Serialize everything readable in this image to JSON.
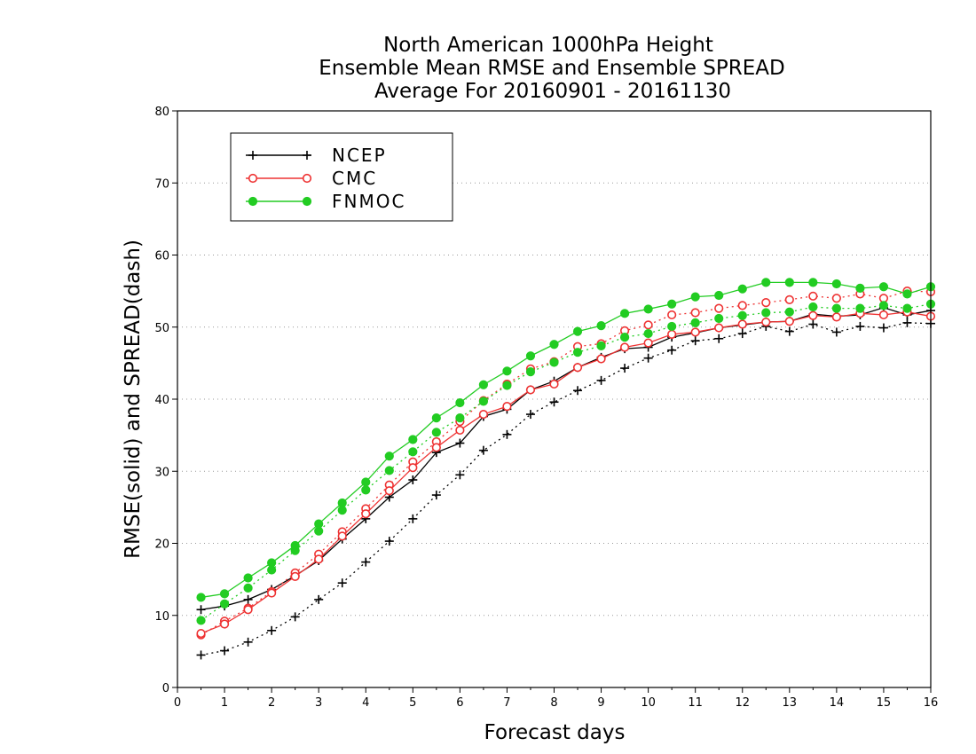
{
  "chart_data": {
    "type": "line",
    "title": [
      "North American 1000hPa Height",
      "Ensemble Mean RMSE and Ensemble SPREAD",
      "Average For 20160901 - 20161130"
    ],
    "xlabel": "Forecast days",
    "ylabel": "RMSE(solid) and SPREAD(dash)",
    "xlim": [
      0,
      16
    ],
    "ylim": [
      0,
      80
    ],
    "xticks": [
      0,
      1,
      2,
      3,
      4,
      5,
      6,
      7,
      8,
      9,
      10,
      11,
      12,
      13,
      14,
      15,
      16
    ],
    "yticks": [
      0,
      10,
      20,
      30,
      40,
      50,
      60,
      70,
      80
    ],
    "grid": "horizontal dotted",
    "legend_position": "top-left",
    "x": [
      0.5,
      1,
      1.5,
      2,
      2.5,
      3,
      3.5,
      4,
      4.5,
      5,
      5.5,
      6,
      6.5,
      7,
      7.5,
      8,
      8.5,
      9,
      9.5,
      10,
      10.5,
      11,
      11.5,
      12,
      12.5,
      13,
      13.5,
      14,
      14.5,
      15,
      15.5,
      16
    ],
    "series": [
      {
        "name": "NCEP",
        "color": "#000000",
        "marker": "plus",
        "rmse": [
          10.8,
          11.3,
          12.2,
          13.6,
          15.5,
          17.6,
          20.6,
          23.4,
          26.4,
          28.8,
          32.6,
          33.9,
          37.6,
          38.6,
          41.3,
          42.5,
          44.4,
          45.8,
          47.0,
          47.2,
          48.6,
          49.2,
          49.9,
          50.3,
          50.7,
          50.8,
          51.8,
          51.5,
          51.7,
          52.7,
          51.7,
          52.3
        ],
        "spread": [
          4.5,
          5.1,
          6.3,
          7.9,
          9.8,
          12.2,
          14.5,
          17.4,
          20.3,
          23.4,
          26.7,
          29.5,
          32.9,
          35.1,
          37.9,
          39.6,
          41.2,
          42.6,
          44.3,
          45.7,
          46.8,
          48.1,
          48.4,
          49.1,
          50.1,
          49.4,
          50.4,
          49.3,
          50.1,
          49.9,
          50.6,
          50.5
        ]
      },
      {
        "name": "CMC",
        "color": "#ee3333",
        "marker": "open-circle",
        "rmse": [
          7.5,
          8.8,
          10.8,
          13.1,
          15.4,
          17.8,
          21.0,
          24.1,
          27.3,
          30.5,
          33.3,
          35.7,
          37.9,
          39.0,
          41.3,
          42.1,
          44.4,
          45.6,
          47.2,
          47.8,
          49.0,
          49.3,
          49.9,
          50.4,
          50.7,
          50.8,
          51.6,
          51.4,
          51.9,
          51.7,
          52.1,
          51.5
        ],
        "spread": [
          7.3,
          9.2,
          11.0,
          13.3,
          15.9,
          18.5,
          21.6,
          24.8,
          28.1,
          31.3,
          34.1,
          36.9,
          39.8,
          42.1,
          44.2,
          45.2,
          47.3,
          47.7,
          49.5,
          50.3,
          51.7,
          52.0,
          52.6,
          53.0,
          53.4,
          53.8,
          54.3,
          54.0,
          54.6,
          54.0,
          55.0,
          54.9
        ]
      },
      {
        "name": "FNMOC",
        "color": "#22cc22",
        "marker": "filled-circle",
        "rmse": [
          12.5,
          13.0,
          15.2,
          17.3,
          19.7,
          22.7,
          25.6,
          28.5,
          32.1,
          34.4,
          37.4,
          39.5,
          42.0,
          43.9,
          46.0,
          47.6,
          49.4,
          50.2,
          51.9,
          52.5,
          53.2,
          54.2,
          54.4,
          55.3,
          56.2,
          56.2,
          56.2,
          56.0,
          55.4,
          55.6,
          54.6,
          55.6
        ],
        "spread": [
          9.3,
          11.6,
          13.8,
          16.3,
          19.0,
          21.7,
          24.6,
          27.4,
          30.1,
          32.7,
          35.4,
          37.4,
          39.7,
          41.9,
          43.8,
          45.1,
          46.5,
          47.4,
          48.6,
          49.1,
          50.1,
          50.6,
          51.2,
          51.6,
          52.0,
          52.1,
          52.8,
          52.6,
          52.6,
          53.0,
          52.6,
          53.2
        ]
      }
    ]
  }
}
